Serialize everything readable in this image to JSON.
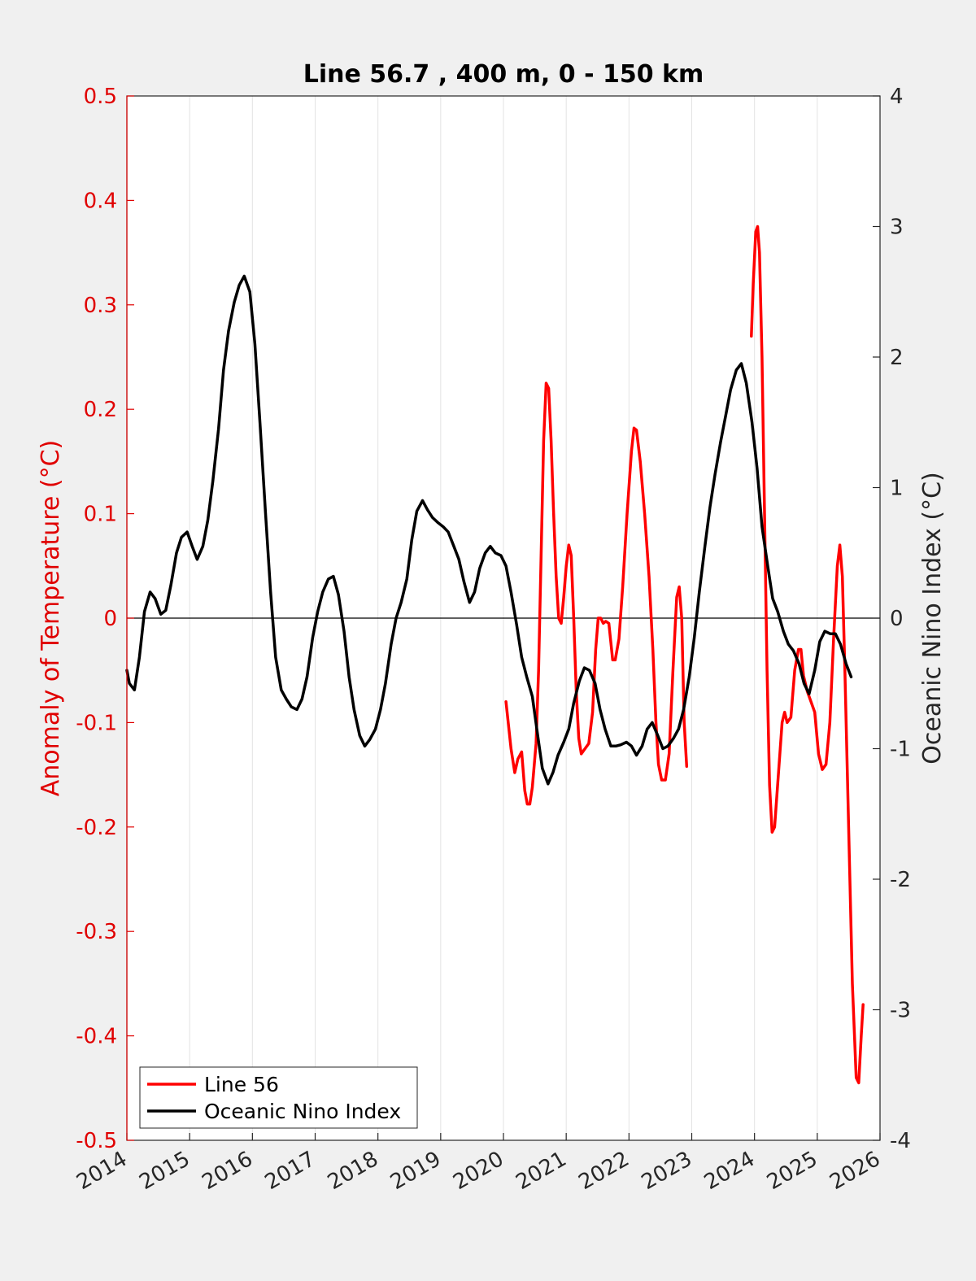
{
  "chart_data": {
    "type": "line",
    "title": "Line 56.7 , 400 m, 0 - 150 km",
    "xlabel": "",
    "ylabel_left": "Anomaly of Temperature (°C)",
    "ylabel_right": "Oceanic Nino Index (°C)",
    "xlim": [
      2014,
      2026
    ],
    "ylim_left": [
      -0.5,
      0.5
    ],
    "ylim_right": [
      -4,
      4
    ],
    "x_ticks": [
      "2014",
      "2015",
      "2016",
      "2017",
      "2018",
      "2019",
      "2020",
      "2021",
      "2022",
      "2023",
      "2024",
      "2025",
      "2026"
    ],
    "y_left_ticks": [
      "-0.5",
      "-0.4",
      "-0.3",
      "-0.2",
      "-0.1",
      "0",
      "0.1",
      "0.2",
      "0.3",
      "0.4",
      "0.5"
    ],
    "y_right_ticks": [
      "-4",
      "-3",
      "-2",
      "-1",
      "0",
      "1",
      "2",
      "3",
      "4"
    ],
    "grid": "vertical",
    "legend_position": "bottom-left",
    "colors": {
      "line56": "#ff0000",
      "oni": "#000000",
      "left_axis": "#e00000",
      "right_axis": "#262626"
    },
    "series": [
      {
        "name": "Line 56",
        "axis": "left",
        "segments": [
          [
            [
              2020.04,
              -0.08
            ],
            [
              2020.12,
              -0.125
            ],
            [
              2020.18,
              -0.148
            ],
            [
              2020.23,
              -0.135
            ],
            [
              2020.29,
              -0.128
            ],
            [
              2020.34,
              -0.165
            ],
            [
              2020.38,
              -0.178
            ],
            [
              2020.42,
              -0.178
            ],
            [
              2020.46,
              -0.162
            ],
            [
              2020.52,
              -0.12
            ],
            [
              2020.56,
              -0.05
            ],
            [
              2020.6,
              0.06
            ],
            [
              2020.64,
              0.17
            ],
            [
              2020.68,
              0.225
            ],
            [
              2020.72,
              0.22
            ],
            [
              2020.76,
              0.17
            ],
            [
              2020.8,
              0.1
            ],
            [
              2020.84,
              0.04
            ],
            [
              2020.88,
              0.0
            ],
            [
              2020.92,
              -0.005
            ],
            [
              2020.96,
              0.02
            ],
            [
              2021.0,
              0.05
            ],
            [
              2021.04,
              0.07
            ],
            [
              2021.08,
              0.06
            ],
            [
              2021.12,
              0.0
            ],
            [
              2021.16,
              -0.07
            ],
            [
              2021.2,
              -0.115
            ],
            [
              2021.24,
              -0.13
            ],
            [
              2021.3,
              -0.125
            ],
            [
              2021.36,
              -0.12
            ],
            [
              2021.42,
              -0.09
            ],
            [
              2021.47,
              -0.03
            ],
            [
              2021.51,
              0.0
            ],
            [
              2021.55,
              0.0
            ],
            [
              2021.59,
              -0.005
            ],
            [
              2021.63,
              -0.003
            ],
            [
              2021.68,
              -0.005
            ],
            [
              2021.74,
              -0.04
            ],
            [
              2021.78,
              -0.04
            ],
            [
              2021.84,
              -0.02
            ],
            [
              2021.9,
              0.03
            ],
            [
              2021.97,
              0.1
            ],
            [
              2022.04,
              0.16
            ],
            [
              2022.08,
              0.182
            ],
            [
              2022.12,
              0.18
            ],
            [
              2022.18,
              0.15
            ],
            [
              2022.25,
              0.1
            ],
            [
              2022.32,
              0.04
            ],
            [
              2022.38,
              -0.03
            ],
            [
              2022.43,
              -0.1
            ],
            [
              2022.47,
              -0.14
            ],
            [
              2022.52,
              -0.155
            ],
            [
              2022.58,
              -0.155
            ],
            [
              2022.64,
              -0.13
            ],
            [
              2022.7,
              -0.05
            ],
            [
              2022.76,
              0.02
            ],
            [
              2022.8,
              0.03
            ],
            [
              2022.84,
              0.0
            ],
            [
              2022.88,
              -0.1
            ],
            [
              2022.92,
              -0.142
            ]
          ],
          [
            [
              2023.95,
              0.27
            ],
            [
              2023.98,
              0.32
            ],
            [
              2024.02,
              0.37
            ],
            [
              2024.05,
              0.375
            ],
            [
              2024.08,
              0.35
            ],
            [
              2024.12,
              0.25
            ],
            [
              2024.16,
              0.1
            ],
            [
              2024.2,
              -0.05
            ],
            [
              2024.24,
              -0.16
            ],
            [
              2024.28,
              -0.205
            ],
            [
              2024.32,
              -0.2
            ],
            [
              2024.38,
              -0.15
            ],
            [
              2024.44,
              -0.1
            ],
            [
              2024.48,
              -0.09
            ],
            [
              2024.52,
              -0.1
            ],
            [
              2024.58,
              -0.095
            ],
            [
              2024.64,
              -0.05
            ],
            [
              2024.7,
              -0.03
            ],
            [
              2024.74,
              -0.03
            ],
            [
              2024.78,
              -0.055
            ],
            [
              2024.84,
              -0.07
            ],
            [
              2024.9,
              -0.08
            ],
            [
              2024.96,
              -0.09
            ],
            [
              2025.02,
              -0.13
            ],
            [
              2025.08,
              -0.145
            ],
            [
              2025.14,
              -0.14
            ],
            [
              2025.2,
              -0.1
            ],
            [
              2025.26,
              -0.02
            ],
            [
              2025.32,
              0.05
            ],
            [
              2025.36,
              0.07
            ],
            [
              2025.4,
              0.04
            ],
            [
              2025.44,
              -0.05
            ],
            [
              2025.5,
              -0.2
            ],
            [
              2025.56,
              -0.35
            ],
            [
              2025.62,
              -0.44
            ],
            [
              2025.66,
              -0.445
            ],
            [
              2025.7,
              -0.4
            ],
            [
              2025.73,
              -0.37
            ]
          ]
        ]
      },
      {
        "name": "Oceanic Nino Index",
        "axis": "right",
        "points": [
          [
            2014.0,
            -0.4
          ],
          [
            2014.04,
            -0.5
          ],
          [
            2014.12,
            -0.55
          ],
          [
            2014.2,
            -0.3
          ],
          [
            2014.28,
            0.05
          ],
          [
            2014.37,
            0.2
          ],
          [
            2014.45,
            0.15
          ],
          [
            2014.54,
            0.03
          ],
          [
            2014.62,
            0.06
          ],
          [
            2014.7,
            0.25
          ],
          [
            2014.79,
            0.5
          ],
          [
            2014.87,
            0.62
          ],
          [
            2014.96,
            0.66
          ],
          [
            2015.04,
            0.55
          ],
          [
            2015.12,
            0.45
          ],
          [
            2015.21,
            0.55
          ],
          [
            2015.29,
            0.75
          ],
          [
            2015.37,
            1.05
          ],
          [
            2015.46,
            1.45
          ],
          [
            2015.54,
            1.9
          ],
          [
            2015.62,
            2.2
          ],
          [
            2015.71,
            2.42
          ],
          [
            2015.79,
            2.55
          ],
          [
            2015.87,
            2.62
          ],
          [
            2015.96,
            2.5
          ],
          [
            2016.04,
            2.1
          ],
          [
            2016.12,
            1.5
          ],
          [
            2016.21,
            0.8
          ],
          [
            2016.29,
            0.2
          ],
          [
            2016.37,
            -0.3
          ],
          [
            2016.46,
            -0.55
          ],
          [
            2016.54,
            -0.62
          ],
          [
            2016.62,
            -0.68
          ],
          [
            2016.71,
            -0.7
          ],
          [
            2016.79,
            -0.62
          ],
          [
            2016.87,
            -0.45
          ],
          [
            2016.96,
            -0.15
          ],
          [
            2017.04,
            0.05
          ],
          [
            2017.12,
            0.2
          ],
          [
            2017.21,
            0.3
          ],
          [
            2017.29,
            0.32
          ],
          [
            2017.37,
            0.18
          ],
          [
            2017.46,
            -0.1
          ],
          [
            2017.54,
            -0.45
          ],
          [
            2017.62,
            -0.7
          ],
          [
            2017.71,
            -0.9
          ],
          [
            2017.79,
            -0.98
          ],
          [
            2017.87,
            -0.93
          ],
          [
            2017.96,
            -0.85
          ],
          [
            2018.04,
            -0.7
          ],
          [
            2018.12,
            -0.5
          ],
          [
            2018.21,
            -0.2
          ],
          [
            2018.29,
            0.0
          ],
          [
            2018.37,
            0.12
          ],
          [
            2018.46,
            0.3
          ],
          [
            2018.54,
            0.6
          ],
          [
            2018.62,
            0.82
          ],
          [
            2018.71,
            0.9
          ],
          [
            2018.79,
            0.83
          ],
          [
            2018.87,
            0.77
          ],
          [
            2018.96,
            0.73
          ],
          [
            2019.04,
            0.7
          ],
          [
            2019.12,
            0.66
          ],
          [
            2019.21,
            0.55
          ],
          [
            2019.29,
            0.45
          ],
          [
            2019.37,
            0.28
          ],
          [
            2019.46,
            0.12
          ],
          [
            2019.54,
            0.2
          ],
          [
            2019.62,
            0.38
          ],
          [
            2019.71,
            0.5
          ],
          [
            2019.79,
            0.55
          ],
          [
            2019.87,
            0.5
          ],
          [
            2019.96,
            0.48
          ],
          [
            2020.04,
            0.4
          ],
          [
            2020.12,
            0.2
          ],
          [
            2020.21,
            -0.05
          ],
          [
            2020.29,
            -0.3
          ],
          [
            2020.37,
            -0.45
          ],
          [
            2020.46,
            -0.6
          ],
          [
            2020.54,
            -0.88
          ],
          [
            2020.62,
            -1.15
          ],
          [
            2020.71,
            -1.27
          ],
          [
            2020.79,
            -1.18
          ],
          [
            2020.87,
            -1.05
          ],
          [
            2020.96,
            -0.95
          ],
          [
            2021.04,
            -0.85
          ],
          [
            2021.12,
            -0.65
          ],
          [
            2021.21,
            -0.48
          ],
          [
            2021.29,
            -0.38
          ],
          [
            2021.37,
            -0.4
          ],
          [
            2021.46,
            -0.5
          ],
          [
            2021.54,
            -0.7
          ],
          [
            2021.62,
            -0.85
          ],
          [
            2021.71,
            -0.98
          ],
          [
            2021.79,
            -0.98
          ],
          [
            2021.87,
            -0.97
          ],
          [
            2021.96,
            -0.95
          ],
          [
            2022.04,
            -0.98
          ],
          [
            2022.12,
            -1.05
          ],
          [
            2022.21,
            -0.98
          ],
          [
            2022.29,
            -0.85
          ],
          [
            2022.37,
            -0.8
          ],
          [
            2022.46,
            -0.9
          ],
          [
            2022.54,
            -1.0
          ],
          [
            2022.62,
            -0.98
          ],
          [
            2022.71,
            -0.92
          ],
          [
            2022.79,
            -0.85
          ],
          [
            2022.87,
            -0.7
          ],
          [
            2022.96,
            -0.45
          ],
          [
            2023.04,
            -0.15
          ],
          [
            2023.12,
            0.2
          ],
          [
            2023.21,
            0.55
          ],
          [
            2023.29,
            0.85
          ],
          [
            2023.37,
            1.1
          ],
          [
            2023.46,
            1.35
          ],
          [
            2023.54,
            1.55
          ],
          [
            2023.62,
            1.75
          ],
          [
            2023.71,
            1.9
          ],
          [
            2023.79,
            1.95
          ],
          [
            2023.87,
            1.8
          ],
          [
            2023.96,
            1.5
          ],
          [
            2024.04,
            1.15
          ],
          [
            2024.12,
            0.7
          ],
          [
            2024.21,
            0.4
          ],
          [
            2024.29,
            0.15
          ],
          [
            2024.37,
            0.05
          ],
          [
            2024.46,
            -0.1
          ],
          [
            2024.54,
            -0.2
          ],
          [
            2024.62,
            -0.25
          ],
          [
            2024.71,
            -0.35
          ],
          [
            2024.79,
            -0.5
          ],
          [
            2024.87,
            -0.58
          ],
          [
            2024.96,
            -0.4
          ],
          [
            2025.04,
            -0.18
          ],
          [
            2025.12,
            -0.1
          ],
          [
            2025.21,
            -0.12
          ],
          [
            2025.29,
            -0.12
          ],
          [
            2025.37,
            -0.2
          ],
          [
            2025.46,
            -0.35
          ],
          [
            2025.54,
            -0.45
          ]
        ]
      }
    ]
  }
}
